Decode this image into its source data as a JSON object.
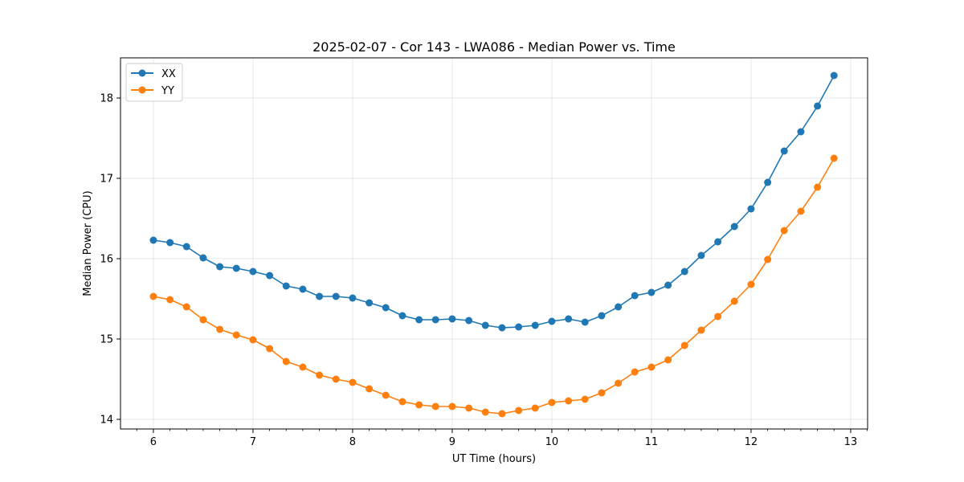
{
  "chart_data": {
    "type": "line",
    "title": "2025-02-07 - Cor 143 - LWA086 - Median Power vs. Time",
    "xlabel": "UT Time (hours)",
    "ylabel": "Median Power (CPU)",
    "xlim": [
      5.67,
      13.17
    ],
    "ylim": [
      13.88,
      18.5
    ],
    "xticks": [
      6,
      7,
      8,
      9,
      10,
      11,
      12,
      13
    ],
    "yticks": [
      14,
      15,
      16,
      17,
      18
    ],
    "grid": true,
    "legend_position": "top-left",
    "x": [
      6.0,
      6.167,
      6.333,
      6.5,
      6.667,
      6.833,
      7.0,
      7.167,
      7.333,
      7.5,
      7.667,
      7.833,
      8.0,
      8.167,
      8.333,
      8.5,
      8.667,
      8.833,
      9.0,
      9.167,
      9.333,
      9.5,
      9.667,
      9.833,
      10.0,
      10.167,
      10.333,
      10.5,
      10.667,
      10.833,
      11.0,
      11.167,
      11.333,
      11.5,
      11.667,
      11.833,
      12.0,
      12.167,
      12.333,
      12.5,
      12.667,
      12.833
    ],
    "series": [
      {
        "name": "XX",
        "color": "#1f77b4",
        "values": [
          16.23,
          16.2,
          16.15,
          16.01,
          15.9,
          15.88,
          15.84,
          15.79,
          15.66,
          15.62,
          15.53,
          15.53,
          15.51,
          15.45,
          15.39,
          15.29,
          15.24,
          15.24,
          15.25,
          15.23,
          15.17,
          15.14,
          15.15,
          15.17,
          15.22,
          15.25,
          15.21,
          15.29,
          15.4,
          15.54,
          15.58,
          15.67,
          15.84,
          16.04,
          16.21,
          16.4,
          16.62,
          16.95,
          17.34,
          17.58,
          17.9,
          18.28
        ]
      },
      {
        "name": "YY",
        "color": "#ff7f0e",
        "values": [
          15.53,
          15.49,
          15.4,
          15.24,
          15.12,
          15.05,
          14.99,
          14.88,
          14.72,
          14.65,
          14.55,
          14.5,
          14.46,
          14.38,
          14.3,
          14.22,
          14.18,
          14.16,
          14.16,
          14.14,
          14.09,
          14.07,
          14.11,
          14.14,
          14.21,
          14.23,
          14.25,
          14.33,
          14.45,
          14.59,
          14.65,
          14.74,
          14.92,
          15.11,
          15.28,
          15.47,
          15.68,
          15.99,
          16.35,
          16.59,
          16.89,
          17.25
        ]
      }
    ]
  }
}
